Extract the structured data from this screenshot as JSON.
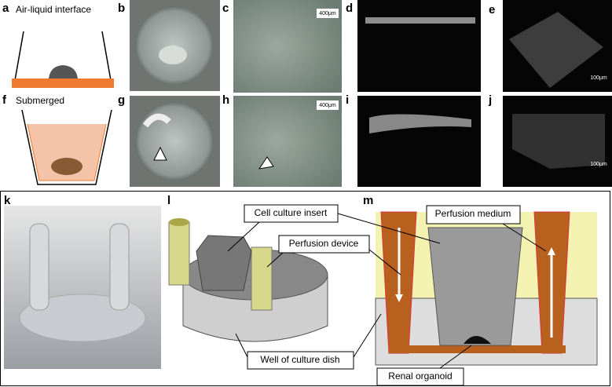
{
  "panel_letters": [
    "a",
    "b",
    "c",
    "d",
    "e",
    "f",
    "g",
    "h",
    "i",
    "j",
    "k",
    "l",
    "m"
  ],
  "condition_labels": [
    "Air-liquid interface",
    "Submerged"
  ],
  "scale_bars": [
    "400μm",
    "400μm",
    "100μm",
    "100μm"
  ],
  "callouts": [
    "Cell culture insert",
    "Perfusion device",
    "Well of culture dish",
    "Perfusion medium",
    "Renal organoid"
  ]
}
